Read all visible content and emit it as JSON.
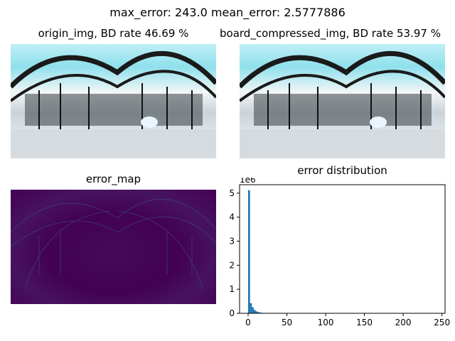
{
  "suptitle": "max_error: 243.0 mean_error: 2.5777886",
  "panels": {
    "origin_title": "origin_img, BD rate 46.69 %",
    "compressed_title": "board_compressed_img, BD rate 53.97 %",
    "error_map_title": "error_map"
  },
  "colors": {
    "bar": "#1f77b4",
    "error_map_base": "#440154",
    "sky": "#8fe0ec",
    "frame": "#1a1a1a"
  },
  "chart_data": {
    "type": "bar",
    "title": "error distribution",
    "xlabel": "",
    "ylabel": "",
    "y_scale_label": "1e6",
    "xlim": [
      -11,
      254
    ],
    "ylim": [
      0,
      5.35
    ],
    "x_ticks": [
      0,
      50,
      100,
      150,
      200,
      250
    ],
    "y_ticks": [
      0,
      1,
      2,
      3,
      4,
      5
    ],
    "bin_edges": [
      0,
      2.43,
      4.86,
      7.29,
      9.72,
      12.15,
      14.58,
      17.01,
      19.44
    ],
    "values": [
      5.12,
      0.42,
      0.25,
      0.14,
      0.08,
      0.05,
      0.03,
      0.02
    ],
    "grid": false
  }
}
